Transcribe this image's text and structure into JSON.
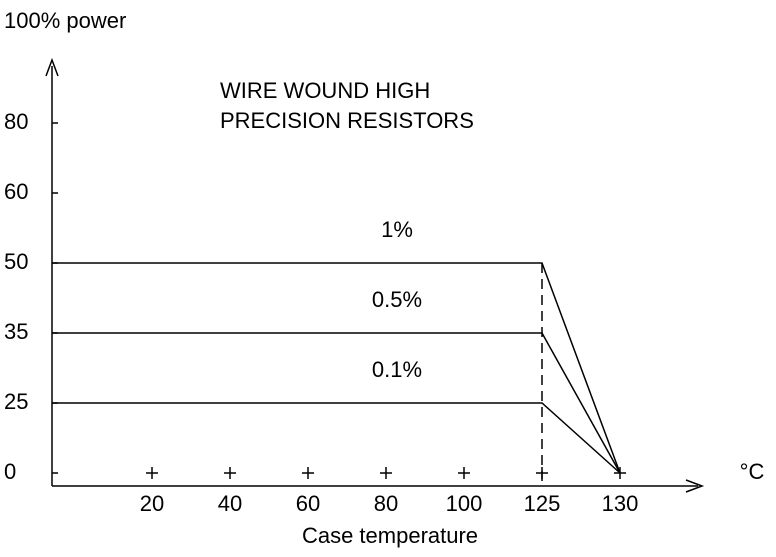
{
  "chart_data": {
    "type": "line",
    "title_lines": [
      "WIRE WOUND HIGH",
      "PRECISION RESISTORS"
    ],
    "y_label": "100% power",
    "x_label": "Case temperature",
    "x_unit": "°C",
    "x": [
      0,
      125,
      130
    ],
    "series": [
      {
        "name": "1%",
        "color": "#000000",
        "values": [
          50,
          50,
          0
        ]
      },
      {
        "name": "0.5%",
        "color": "#000000",
        "values": [
          35,
          35,
          0
        ]
      },
      {
        "name": "0.1%",
        "color": "#000000",
        "values": [
          25,
          25,
          0
        ]
      }
    ],
    "xlim": [
      0,
      140
    ],
    "xticks": [
      20,
      40,
      60,
      80,
      100,
      125,
      130
    ],
    "ylim": [
      0,
      90
    ],
    "yticks": [
      0,
      25,
      35,
      50,
      60,
      80
    ],
    "grid": false
  }
}
